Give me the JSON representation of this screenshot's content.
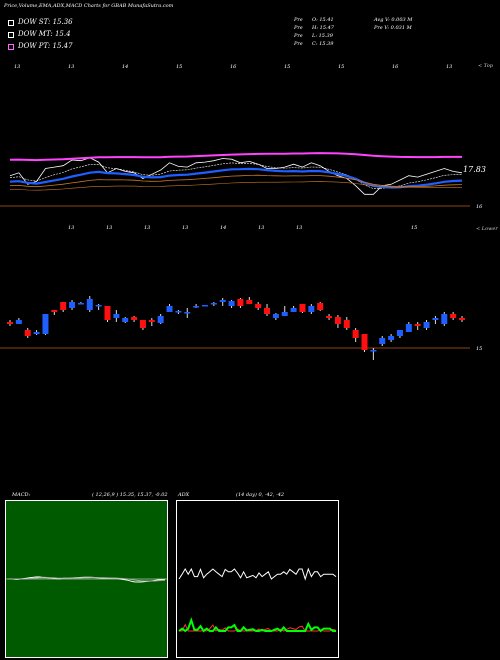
{
  "header": {
    "title": "Price,Volume,EMA,ADX,MACD Charts for GBAB MunafaSutra.com",
    "stats_left": [
      {
        "label": "Pre",
        "text": "O: 15.41"
      },
      {
        "label": "Pre",
        "text": "H: 15.47"
      },
      {
        "label": "Pre",
        "text": "L: 15.39"
      },
      {
        "label": "Pre",
        "text": "C: 15.39"
      }
    ],
    "stats_right": [
      {
        "text": "Avg V: 0.003 M"
      },
      {
        "text": "Pre   V: 0.031 M"
      }
    ]
  },
  "legend": [
    {
      "label": "DOW ST: 15.36",
      "color": "#ffffff"
    },
    {
      "label": "DOW MT: 15.4",
      "color": "#ffffff"
    },
    {
      "label": "DOW PT: 15.47",
      "color": "#ff66ff"
    }
  ],
  "colors": {
    "up": "#1f5fff",
    "down": "#ff1010",
    "ema_fast": "#1f5fff",
    "ema_mid": "#ffffff",
    "ema_slow": "#cc7722",
    "pivot": "#ff44ff",
    "guide": "#8b4513",
    "macd_bg": "#005a00",
    "adx_plus": "#00ff00",
    "adx_minus": "#ff3030",
    "adx_line": "#ffffff"
  },
  "ema_panel": {
    "top_label": "< Top",
    "price_label": "17.83",
    "low_label": "16",
    "month_labels": [
      "13",
      "13",
      "14",
      "15",
      "16",
      "15",
      "15",
      "16",
      "13"
    ]
  },
  "candle_panel": {
    "lower_label": "< Lower",
    "price_label": "15",
    "top_labels": [
      "13",
      "13",
      "13",
      "13",
      "14",
      "13",
      "13"
    ],
    "right_label": "15"
  },
  "macd_panel": {
    "label": "MACD:",
    "params": "( 12,26,9 ) 15.35,  15.37,  -0.02"
  },
  "adx_panel": {
    "label": "ADX",
    "params": "(14  day) 0,  -42,  -42"
  },
  "chart_data": {
    "type": "candlestick",
    "title": "Price,Volume,EMA,ADX,MACD Charts for GBAB MunafaSutra.com",
    "ylim": [
      14.5,
      16.2
    ],
    "candles": [
      {
        "o": 15.28,
        "h": 15.3,
        "l": 15.24,
        "c": 15.26
      },
      {
        "o": 15.26,
        "h": 15.32,
        "l": 15.26,
        "c": 15.3
      },
      {
        "o": 15.2,
        "h": 15.22,
        "l": 15.12,
        "c": 15.14
      },
      {
        "o": 15.16,
        "h": 15.2,
        "l": 15.15,
        "c": 15.18
      },
      {
        "o": 15.16,
        "h": 15.36,
        "l": 15.15,
        "c": 15.36
      },
      {
        "o": 15.4,
        "h": 15.4,
        "l": 15.35,
        "c": 15.38
      },
      {
        "o": 15.48,
        "h": 15.48,
        "l": 15.38,
        "c": 15.4
      },
      {
        "o": 15.42,
        "h": 15.5,
        "l": 15.4,
        "c": 15.48
      },
      {
        "o": 15.46,
        "h": 15.48,
        "l": 15.46,
        "c": 15.47
      },
      {
        "o": 15.4,
        "h": 15.54,
        "l": 15.38,
        "c": 15.51
      },
      {
        "o": 15.44,
        "h": 15.46,
        "l": 15.4,
        "c": 15.45
      },
      {
        "o": 15.44,
        "h": 15.44,
        "l": 15.28,
        "c": 15.3
      },
      {
        "o": 15.32,
        "h": 15.4,
        "l": 15.28,
        "c": 15.36
      },
      {
        "o": 15.28,
        "h": 15.33,
        "l": 15.27,
        "c": 15.32
      },
      {
        "o": 15.33,
        "h": 15.34,
        "l": 15.28,
        "c": 15.3
      },
      {
        "o": 15.3,
        "h": 15.3,
        "l": 15.2,
        "c": 15.22
      },
      {
        "o": 15.3,
        "h": 15.32,
        "l": 15.24,
        "c": 15.28
      },
      {
        "o": 15.27,
        "h": 15.36,
        "l": 15.26,
        "c": 15.34
      },
      {
        "o": 15.38,
        "h": 15.46,
        "l": 15.38,
        "c": 15.44
      },
      {
        "o": 15.39,
        "h": 15.4,
        "l": 15.36,
        "c": 15.39
      },
      {
        "o": 15.38,
        "h": 15.42,
        "l": 15.32,
        "c": 15.38
      },
      {
        "o": 15.43,
        "h": 15.46,
        "l": 15.42,
        "c": 15.44
      },
      {
        "o": 15.44,
        "h": 15.45,
        "l": 15.44,
        "c": 15.45
      },
      {
        "o": 15.46,
        "h": 15.48,
        "l": 15.44,
        "c": 15.47
      },
      {
        "o": 15.48,
        "h": 15.52,
        "l": 15.44,
        "c": 15.5
      },
      {
        "o": 15.44,
        "h": 15.5,
        "l": 15.42,
        "c": 15.49
      },
      {
        "o": 15.51,
        "h": 15.52,
        "l": 15.42,
        "c": 15.44
      },
      {
        "o": 15.5,
        "h": 15.53,
        "l": 15.46,
        "c": 15.46
      },
      {
        "o": 15.46,
        "h": 15.48,
        "l": 15.4,
        "c": 15.42
      },
      {
        "o": 15.42,
        "h": 15.46,
        "l": 15.34,
        "c": 15.36
      },
      {
        "o": 15.32,
        "h": 15.37,
        "l": 15.3,
        "c": 15.36
      },
      {
        "o": 15.34,
        "h": 15.44,
        "l": 15.34,
        "c": 15.38
      },
      {
        "o": 15.38,
        "h": 15.44,
        "l": 15.38,
        "c": 15.42
      },
      {
        "o": 15.46,
        "h": 15.46,
        "l": 15.37,
        "c": 15.38
      },
      {
        "o": 15.38,
        "h": 15.46,
        "l": 15.36,
        "c": 15.44
      },
      {
        "o": 15.47,
        "h": 15.48,
        "l": 15.39,
        "c": 15.4
      },
      {
        "o": 15.34,
        "h": 15.36,
        "l": 15.3,
        "c": 15.32
      },
      {
        "o": 15.33,
        "h": 15.35,
        "l": 15.22,
        "c": 15.26
      },
      {
        "o": 15.3,
        "h": 15.33,
        "l": 15.2,
        "c": 15.22
      },
      {
        "o": 15.2,
        "h": 15.22,
        "l": 15.08,
        "c": 15.12
      },
      {
        "o": 15.16,
        "h": 15.16,
        "l": 14.98,
        "c": 15.0
      },
      {
        "o": 15.0,
        "h": 15.02,
        "l": 14.9,
        "c": 15.0
      },
      {
        "o": 15.06,
        "h": 15.14,
        "l": 15.04,
        "c": 15.12
      },
      {
        "o": 15.1,
        "h": 15.16,
        "l": 15.08,
        "c": 15.14
      },
      {
        "o": 15.14,
        "h": 15.2,
        "l": 15.12,
        "c": 15.2
      },
      {
        "o": 15.18,
        "h": 15.28,
        "l": 15.18,
        "c": 15.26
      },
      {
        "o": 15.26,
        "h": 15.28,
        "l": 15.2,
        "c": 15.24
      },
      {
        "o": 15.22,
        "h": 15.3,
        "l": 15.2,
        "c": 15.28
      },
      {
        "o": 15.3,
        "h": 15.34,
        "l": 15.26,
        "c": 15.32
      },
      {
        "o": 15.26,
        "h": 15.38,
        "l": 15.24,
        "c": 15.36
      },
      {
        "o": 15.36,
        "h": 15.38,
        "l": 15.3,
        "c": 15.32
      },
      {
        "o": 15.32,
        "h": 15.34,
        "l": 15.28,
        "c": 15.3
      }
    ],
    "macd": {
      "values": [
        15.35,
        15.37,
        -0.02
      ]
    },
    "adx": {
      "values": [
        0,
        -42,
        -42
      ]
    }
  }
}
